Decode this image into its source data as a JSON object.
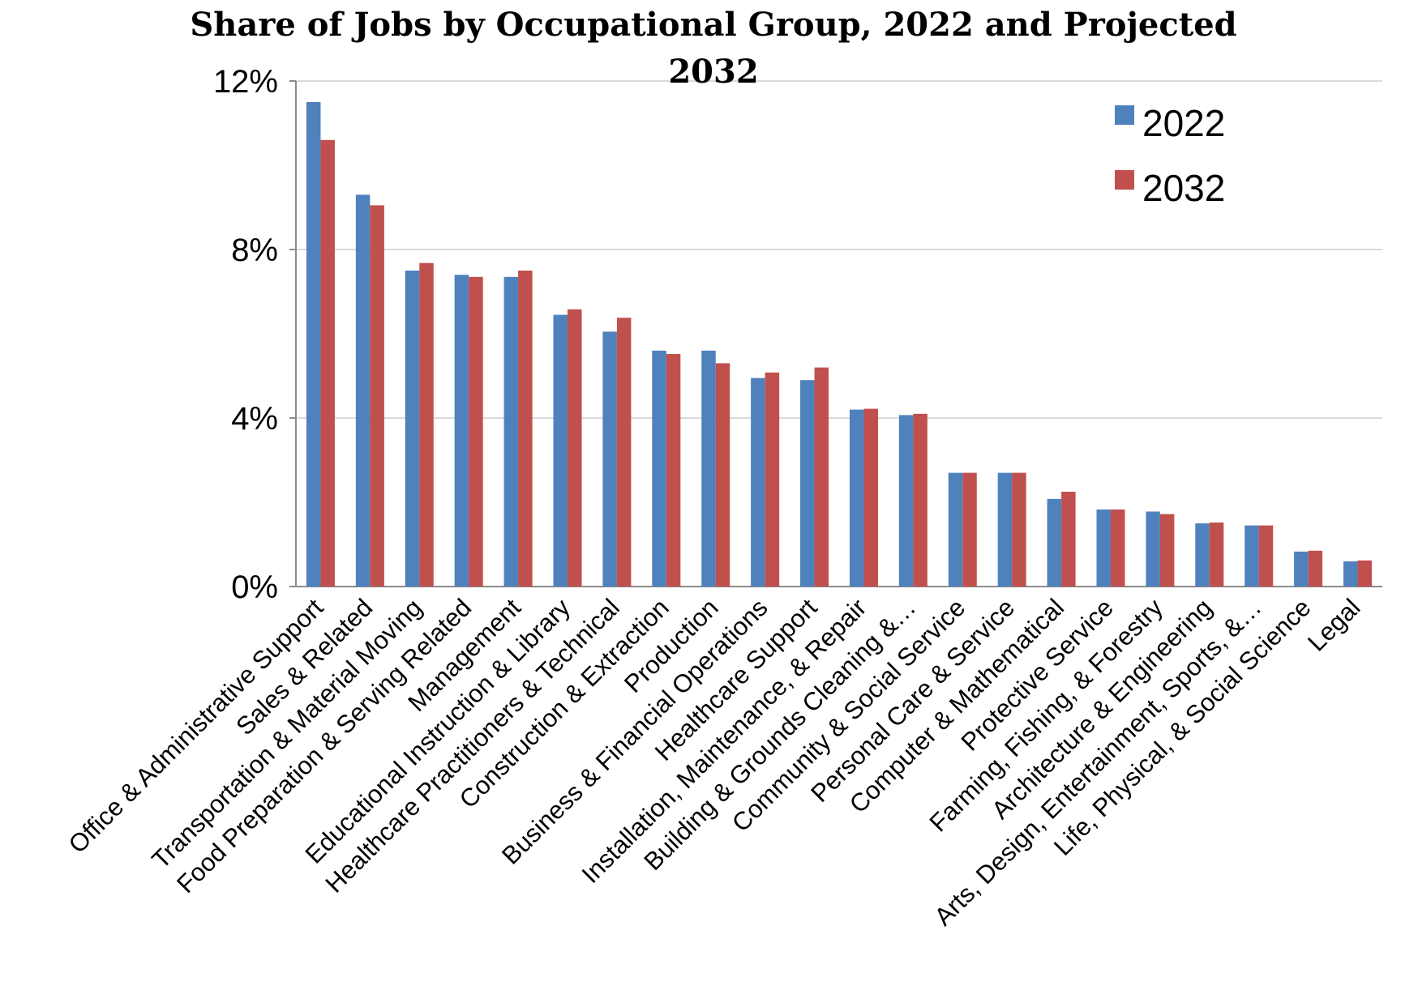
{
  "chart_data": {
    "type": "bar",
    "title": "Share of Jobs by Occupational Group, 2022 and Projected 2032",
    "xlabel": "",
    "ylabel": "",
    "ylim": [
      0,
      12
    ],
    "yticks": [
      "0%",
      "4%",
      "8%",
      "12%"
    ],
    "ytick_values": [
      0,
      4,
      8,
      12
    ],
    "grid": true,
    "legend_position": "top-right",
    "categories": [
      "Office & Administrative Support",
      "Sales & Related",
      "Transportation & Material Moving",
      "Food Preparation & Serving Related",
      "Management",
      "Educational Instruction & Library",
      "Healthcare Practitioners & Technical",
      "Construction & Extraction",
      "Production",
      "Business & Financial Operations",
      "Healthcare Support",
      "Installation, Maintenance, & Repair",
      "Building & Grounds Cleaning &…",
      "Community & Social Service",
      "Personal Care & Service",
      "Computer & Mathematical",
      "Protective Service",
      "Farming, Fishing, & Forestry",
      "Architecture & Engineering",
      "Arts, Design, Entertainment, Sports, &…",
      "Life, Physical, & Social Science",
      "Legal"
    ],
    "series": [
      {
        "name": "2022",
        "color": "#4f81bd",
        "values": [
          11.5,
          9.3,
          7.5,
          7.4,
          7.35,
          6.45,
          6.05,
          5.6,
          5.6,
          4.95,
          4.9,
          4.2,
          4.07,
          2.7,
          2.7,
          2.08,
          1.83,
          1.78,
          1.5,
          1.45,
          0.83,
          0.6
        ]
      },
      {
        "name": "2032",
        "color": "#c0504d",
        "values": [
          10.6,
          9.05,
          7.68,
          7.35,
          7.5,
          6.58,
          6.38,
          5.52,
          5.3,
          5.08,
          5.2,
          4.22,
          4.1,
          2.7,
          2.7,
          2.25,
          1.83,
          1.72,
          1.52,
          1.45,
          0.85,
          0.62
        ]
      }
    ]
  }
}
